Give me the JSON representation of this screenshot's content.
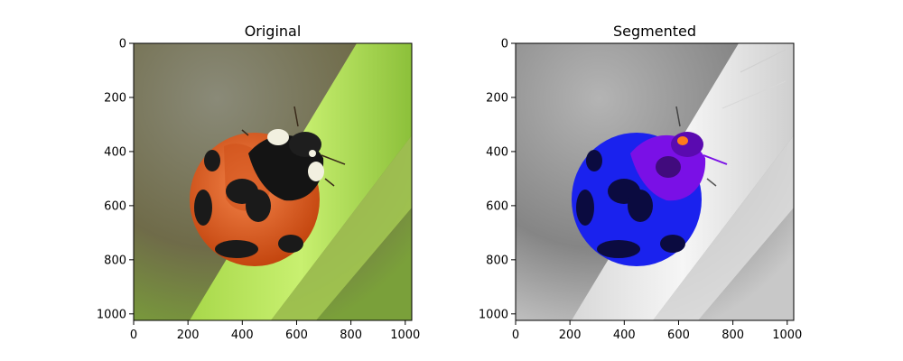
{
  "chart_data": [
    {
      "type": "image",
      "title": "Original",
      "xlim": [
        0,
        1024
      ],
      "ylim": [
        1024,
        0
      ],
      "xticks": [
        0,
        200,
        400,
        600,
        800,
        1000
      ],
      "yticks": [
        0,
        200,
        400,
        600,
        800,
        1000
      ],
      "xtick_labels": [
        "0",
        "200",
        "400",
        "600",
        "800",
        "1000"
      ],
      "ytick_labels": [
        "0",
        "200",
        "400",
        "600",
        "800",
        "1000"
      ],
      "xlabel": "",
      "ylabel": "",
      "colors": {
        "background": "#6f6b49",
        "leaf": "#9ccc3c",
        "ladybug_shell": "#e05a1e",
        "spots": "#1a1a1a",
        "head_white": "#f2f0e0"
      }
    },
    {
      "type": "image",
      "title": "Segmented",
      "xlim": [
        0,
        1024
      ],
      "ylim": [
        1024,
        0
      ],
      "xticks": [
        0,
        200,
        400,
        600,
        800,
        1000
      ],
      "yticks": [
        0,
        200,
        400,
        600,
        800,
        1000
      ],
      "xtick_labels": [
        "0",
        "200",
        "400",
        "600",
        "800",
        "1000"
      ],
      "ytick_labels": [
        "0",
        "200",
        "400",
        "600",
        "800",
        "1000"
      ],
      "xlabel": "",
      "ylabel": "",
      "colors": {
        "background": "#8f8f8f",
        "leaf": "#e8e8e8",
        "segment_body": "#1a22ee",
        "segment_head": "#7a10e6",
        "segment_highlight": "#ff7a1a",
        "spots": "#0b0b40"
      }
    }
  ]
}
